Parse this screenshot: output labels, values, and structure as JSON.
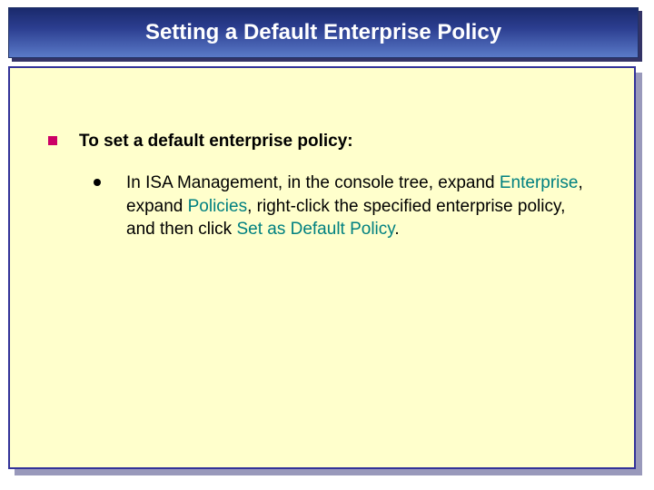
{
  "colors": {
    "title_gradient_top": "#1a2a6c",
    "title_gradient_bottom": "#5a7ac8",
    "title_shadow": "#333366",
    "body_bg": "#ffffcc",
    "body_border": "#333399",
    "body_shadow": "#9999bb",
    "square_bullet": "#cc0066",
    "dot_bullet": "#000000",
    "highlight_text": "#008080",
    "body_text": "#000000",
    "title_text": "#ffffff"
  },
  "title": "Setting a Default Enterprise Policy",
  "heading": "To set a default enterprise policy:",
  "step": {
    "pre1": "In ISA Management, in the console tree, expand ",
    "hl1": "Enterprise",
    "mid1": ", expand ",
    "hl2": "Policies",
    "mid2": ", right-click the specified enterprise policy, and then click ",
    "hl3": "Set as Default Policy",
    "post": "."
  }
}
